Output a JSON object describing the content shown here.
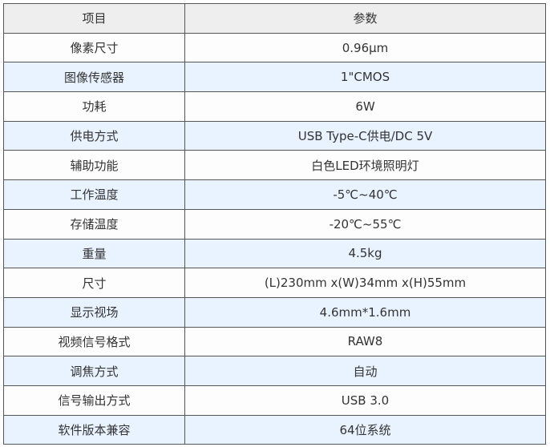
{
  "table": {
    "headers": [
      "项目",
      "参数"
    ],
    "rows": [
      [
        "像素尺寸",
        "0.96μm"
      ],
      [
        "图像传感器",
        "1\"CMOS"
      ],
      [
        "功耗",
        "6W"
      ],
      [
        "供电方式",
        "USB Type-C供电/DC 5V"
      ],
      [
        "辅助功能",
        "白色LED环境照明灯"
      ],
      [
        "工作温度",
        "-5℃~40℃"
      ],
      [
        "存储温度",
        "-20℃~55℃"
      ],
      [
        "重量",
        "4.5kg"
      ],
      [
        "尺寸",
        "(L)230mm x(W)34mm x(H)55mm"
      ],
      [
        "显示视场",
        "4.6mm*1.6mm"
      ],
      [
        "视频信号格式",
        "RAW8"
      ],
      [
        "调焦方式",
        "自动"
      ],
      [
        "信号输出方式",
        "USB 3.0"
      ],
      [
        "软件版本兼容",
        "64位系统"
      ]
    ]
  },
  "colors": {
    "header_bg": "#eeeeee",
    "row_odd": "#fdfdfd",
    "row_even": "#e8f3ff",
    "border": "#555555"
  }
}
